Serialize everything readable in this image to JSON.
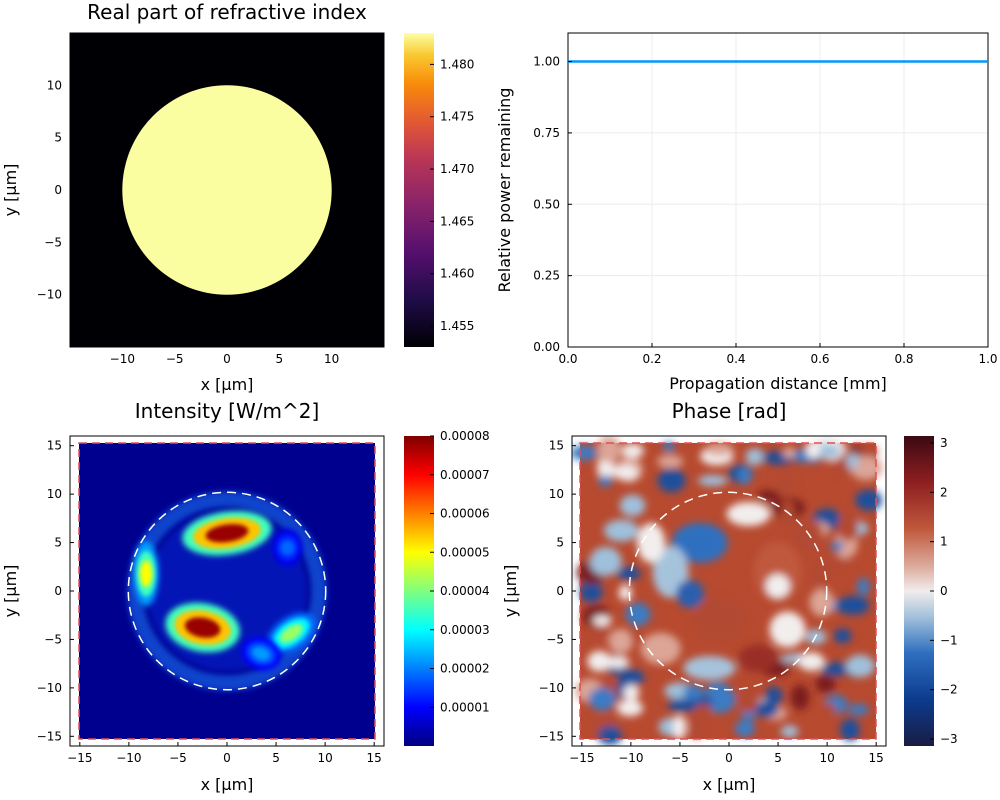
{
  "chart_data": [
    {
      "type": "heatmap",
      "title": "Real part of refractive index",
      "xlabel": "x [μm]",
      "ylabel": "y [μm]",
      "xlim": [
        -15,
        15
      ],
      "ylim": [
        -15,
        15
      ],
      "xticks": [
        "−10",
        "−5",
        "0",
        "5",
        "10"
      ],
      "yticks": [
        "−10",
        "−5",
        "0",
        "5",
        "10"
      ],
      "core_radius": 10,
      "core_value": 1.483,
      "cladding_value": 1.453,
      "colormap": "inferno",
      "colorbar": {
        "range": [
          1.453,
          1.483
        ],
        "ticks": [
          "1.455",
          "1.460",
          "1.465",
          "1.470",
          "1.475",
          "1.480"
        ]
      }
    },
    {
      "type": "line",
      "title": "",
      "xlabel": "Propagation distance [mm]",
      "ylabel": "Relative power remaining",
      "xlim": [
        0,
        1
      ],
      "ylim": [
        0,
        1.1
      ],
      "xticks": [
        "0.0",
        "0.2",
        "0.4",
        "0.6",
        "0.8",
        "1.0"
      ],
      "yticks": [
        "0.00",
        "0.25",
        "0.50",
        "0.75",
        "1.00"
      ],
      "grid": true,
      "series": [
        {
          "x": [
            0,
            0.25,
            0.5,
            0.75,
            1.0
          ],
          "y": [
            1,
            1,
            1,
            1,
            1
          ],
          "color": "#009af9"
        }
      ]
    },
    {
      "type": "heatmap",
      "title": "Intensity [W/m^2]",
      "xlabel": "x [μm]",
      "ylabel": "y [μm]",
      "xlim": [
        -16,
        16
      ],
      "ylim": [
        -16,
        16
      ],
      "xticks": [
        "−15",
        "−10",
        "−5",
        "0",
        "5",
        "10",
        "15"
      ],
      "yticks": [
        "−15",
        "−10",
        "−5",
        "0",
        "5",
        "10",
        "15"
      ],
      "colormap": "jet",
      "colorbar": {
        "range": [
          0,
          8e-05
        ],
        "ticks": [
          "0.00001",
          "0.00002",
          "0.00003",
          "0.00004",
          "0.00005",
          "0.00006",
          "0.00007",
          "0.00008"
        ]
      },
      "peaks": [
        {
          "x": 0,
          "y": 6,
          "value": 7.8e-05
        },
        {
          "x": -2.5,
          "y": -3.8,
          "value": 7.8e-05
        },
        {
          "x": -8.3,
          "y": 1.8,
          "value": 5e-05
        },
        {
          "x": 6.6,
          "y": -4.4,
          "value": 4.2e-05
        },
        {
          "x": 6.2,
          "y": 4.5,
          "value": 1.8e-05
        },
        {
          "x": 3.5,
          "y": -6.5,
          "value": 2.2e-05
        }
      ]
    },
    {
      "type": "heatmap",
      "title": "Phase [rad]",
      "xlabel": "x [μm]",
      "ylabel": "y [μm]",
      "xlim": [
        -16,
        16
      ],
      "ylim": [
        -16,
        16
      ],
      "xticks": [
        "−15",
        "−10",
        "−5",
        "0",
        "5",
        "10",
        "15"
      ],
      "yticks": [
        "−15",
        "−10",
        "−5",
        "0",
        "5",
        "10",
        "15"
      ],
      "colormap": "balance",
      "colorbar": {
        "range": [
          -3.1416,
          3.1416
        ],
        "ticks": [
          "−3",
          "−2",
          "−1",
          "0",
          "1",
          "2",
          "3"
        ]
      }
    }
  ]
}
